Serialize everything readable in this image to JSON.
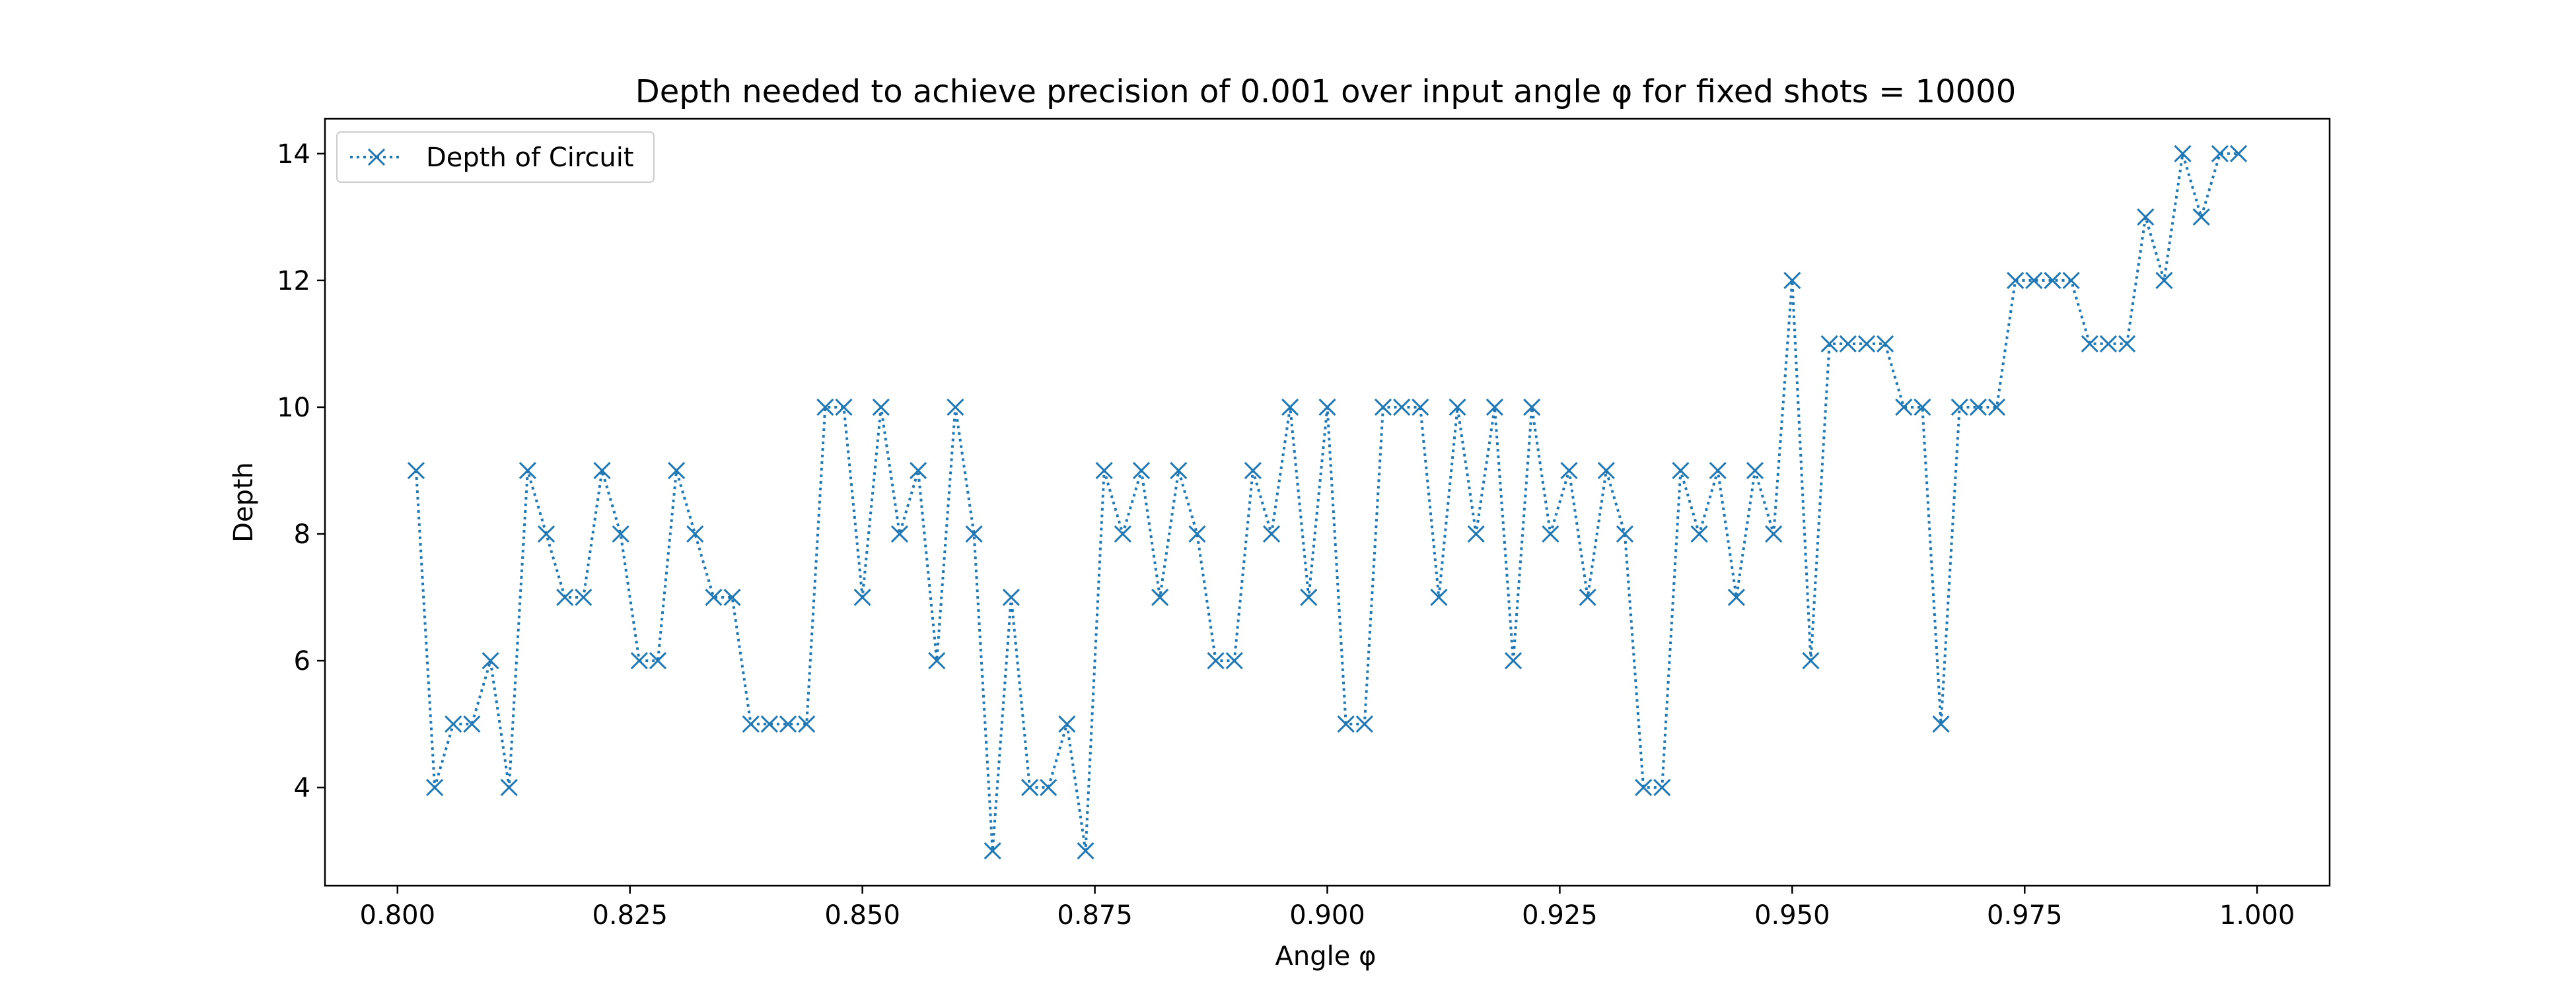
{
  "chart_data": {
    "type": "line",
    "title": "Depth needed to achieve precision of 0.001 over input angle φ for fixed shots = 10000",
    "xlabel": "Angle φ",
    "ylabel": "Depth",
    "xlim": [
      0.7922,
      1.0078
    ],
    "ylim": [
      2.45,
      14.55
    ],
    "xticks": [
      0.8,
      0.825,
      0.85,
      0.875,
      0.9,
      0.925,
      0.95,
      0.975,
      1.0
    ],
    "xtick_labels": [
      "0.800",
      "0.825",
      "0.850",
      "0.875",
      "0.900",
      "0.925",
      "0.950",
      "0.975",
      "1.000"
    ],
    "yticks": [
      4,
      6,
      8,
      10,
      12,
      14
    ],
    "ytick_labels": [
      "4",
      "6",
      "8",
      "10",
      "12",
      "14"
    ],
    "grid": false,
    "legend": {
      "position": "top-left",
      "entries": [
        "Depth of Circuit"
      ]
    },
    "colors": {
      "series": "#1f77b4",
      "axis": "#000000"
    },
    "series": [
      {
        "name": "Depth of Circuit",
        "line_style": "dotted",
        "marker": "x",
        "x": [
          0.802,
          0.804,
          0.806,
          0.808,
          0.81,
          0.812,
          0.814,
          0.816,
          0.818,
          0.82,
          0.822,
          0.824,
          0.826,
          0.828,
          0.83,
          0.832,
          0.834,
          0.836,
          0.838,
          0.84,
          0.842,
          0.844,
          0.846,
          0.848,
          0.85,
          0.852,
          0.854,
          0.856,
          0.858,
          0.86,
          0.862,
          0.864,
          0.866,
          0.868,
          0.87,
          0.872,
          0.874,
          0.876,
          0.878,
          0.88,
          0.882,
          0.884,
          0.886,
          0.888,
          0.89,
          0.892,
          0.894,
          0.896,
          0.898,
          0.9,
          0.902,
          0.904,
          0.906,
          0.908,
          0.91,
          0.912,
          0.914,
          0.916,
          0.918,
          0.92,
          0.922,
          0.924,
          0.926,
          0.928,
          0.93,
          0.932,
          0.934,
          0.936,
          0.938,
          0.94,
          0.942,
          0.944,
          0.946,
          0.948,
          0.95,
          0.952,
          0.954,
          0.956,
          0.958,
          0.96,
          0.962,
          0.964,
          0.966,
          0.968,
          0.97,
          0.972,
          0.974,
          0.976,
          0.978,
          0.98,
          0.982,
          0.984,
          0.986,
          0.988,
          0.99,
          0.992,
          0.994,
          0.996,
          0.998
        ],
        "y": [
          9,
          4,
          5,
          5,
          6,
          4,
          9,
          8,
          7,
          7,
          9,
          8,
          6,
          6,
          9,
          8,
          7,
          7,
          5,
          5,
          5,
          5,
          10,
          10,
          7,
          10,
          8,
          9,
          6,
          10,
          8,
          3,
          7,
          4,
          4,
          5,
          3,
          9,
          8,
          9,
          7,
          9,
          8,
          6,
          6,
          9,
          8,
          10,
          7,
          10,
          5,
          5,
          10,
          10,
          10,
          7,
          10,
          8,
          10,
          6,
          10,
          8,
          9,
          7,
          9,
          8,
          4,
          4,
          9,
          8,
          9,
          7,
          9,
          8,
          12,
          6,
          11,
          11,
          11,
          11,
          10,
          10,
          5,
          10,
          10,
          10,
          12,
          12,
          12,
          12,
          11,
          11,
          11,
          13,
          12,
          14,
          13,
          14,
          14
        ]
      }
    ]
  }
}
